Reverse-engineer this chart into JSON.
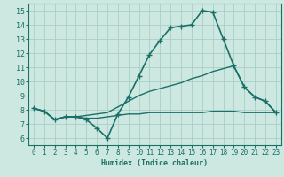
{
  "bg_color": "#cce8e0",
  "grid_color": "#aacfc8",
  "line_color": "#1a7068",
  "xlabel": "Humidex (Indice chaleur)",
  "xlim": [
    -0.5,
    23.5
  ],
  "ylim": [
    5.5,
    15.5
  ],
  "xticks": [
    0,
    1,
    2,
    3,
    4,
    5,
    6,
    7,
    8,
    9,
    10,
    11,
    12,
    13,
    14,
    15,
    16,
    17,
    18,
    19,
    20,
    21,
    22,
    23
  ],
  "yticks": [
    6,
    7,
    8,
    9,
    10,
    11,
    12,
    13,
    14,
    15
  ],
  "series": [
    {
      "x": [
        0,
        1,
        2,
        3,
        4,
        5,
        6,
        7,
        8,
        9,
        10,
        11,
        12,
        13,
        14,
        15,
        16,
        17,
        18,
        19,
        20,
        21,
        22,
        23
      ],
      "y": [
        8.1,
        7.9,
        7.3,
        7.5,
        7.5,
        7.3,
        6.7,
        6.0,
        7.7,
        8.9,
        10.4,
        11.9,
        12.9,
        13.8,
        13.9,
        14.0,
        15.0,
        14.9,
        13.0,
        11.1,
        9.6,
        8.9,
        8.6,
        7.8
      ],
      "marker": "+",
      "markersize": 4,
      "linewidth": 1.2
    },
    {
      "x": [
        0,
        1,
        2,
        3,
        4,
        5,
        6,
        7,
        8,
        9,
        10,
        11,
        12,
        13,
        14,
        15,
        16,
        17,
        18,
        19,
        20,
        21,
        22,
        23
      ],
      "y": [
        8.1,
        7.9,
        7.3,
        7.5,
        7.5,
        7.6,
        7.7,
        7.8,
        8.2,
        8.6,
        9.0,
        9.3,
        9.5,
        9.7,
        9.9,
        10.2,
        10.4,
        10.7,
        10.9,
        11.1,
        9.6,
        8.9,
        8.6,
        7.8
      ],
      "marker": null,
      "linewidth": 1.0
    },
    {
      "x": [
        0,
        1,
        2,
        3,
        4,
        5,
        6,
        7,
        8,
        9,
        10,
        11,
        12,
        13,
        14,
        15,
        16,
        17,
        18,
        19,
        20,
        21,
        22,
        23
      ],
      "y": [
        8.1,
        7.9,
        7.3,
        7.5,
        7.5,
        7.4,
        7.4,
        7.5,
        7.6,
        7.7,
        7.7,
        7.8,
        7.8,
        7.8,
        7.8,
        7.8,
        7.8,
        7.9,
        7.9,
        7.9,
        7.8,
        7.8,
        7.8,
        7.8
      ],
      "marker": null,
      "linewidth": 1.0
    }
  ]
}
